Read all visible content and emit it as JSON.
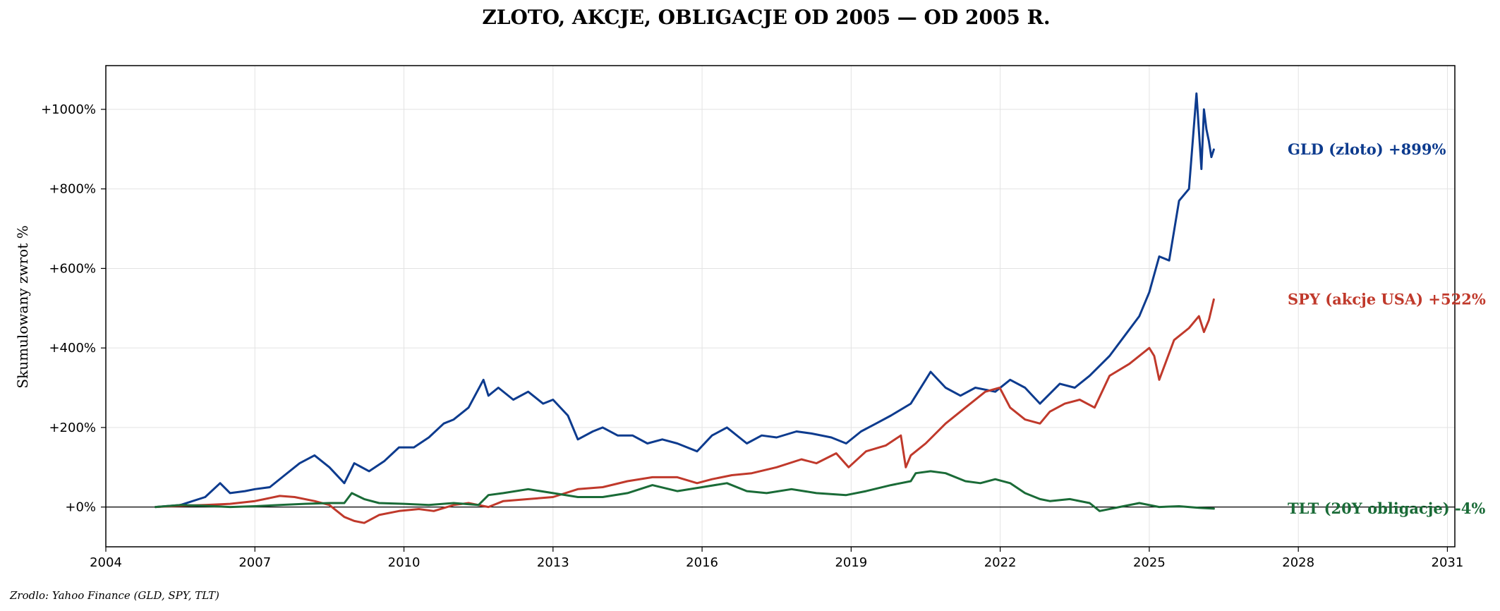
{
  "chart_data": {
    "type": "line",
    "title": "ZLOTO, AKCJE, OBLIGACJE OD 2005 — OD 2005 R.",
    "ylabel": "Skumulowany zwrot %",
    "xlabel": "",
    "xlim": [
      2004.0,
      2031.15
    ],
    "ylim": [
      -100,
      1110
    ],
    "x_ticks": [
      2004,
      2007,
      2010,
      2013,
      2016,
      2019,
      2022,
      2025,
      2028,
      2031
    ],
    "x_tick_labels": [
      "2004",
      "2007",
      "2010",
      "2013",
      "2016",
      "2019",
      "2022",
      "2025",
      "2028",
      "2031"
    ],
    "y_ticks": [
      0,
      200,
      400,
      600,
      800,
      1000
    ],
    "y_tick_labels": [
      "+0%",
      "+200%",
      "+400%",
      "+600%",
      "+800%",
      "+1000%"
    ],
    "grid": true,
    "zero_line": true,
    "source_note": "Zrodlo: Yahoo Finance (GLD, SPY, TLT)",
    "end_labels": [
      {
        "text": "GLD (zloto)  +899%",
        "color": "#0d3b8e",
        "y": 899
      },
      {
        "text": "SPY (akcje USA)  +522%",
        "color": "#c0392b",
        "y": 522
      },
      {
        "text": "TLT (20Y obligacje)  -4%",
        "color": "#1a6b37",
        "y": -4
      }
    ],
    "series": [
      {
        "name": "GLD (zloto)",
        "color": "#0d3b8e",
        "x": [
          2005.0,
          2005.5,
          2006.0,
          2006.3,
          2006.5,
          2006.8,
          2007.0,
          2007.3,
          2007.6,
          2007.9,
          2008.2,
          2008.5,
          2008.8,
          2009.0,
          2009.3,
          2009.6,
          2009.9,
          2010.2,
          2010.5,
          2010.8,
          2011.0,
          2011.3,
          2011.6,
          2011.7,
          2011.9,
          2012.2,
          2012.5,
          2012.8,
          2013.0,
          2013.3,
          2013.5,
          2013.8,
          2014.0,
          2014.3,
          2014.6,
          2014.9,
          2015.2,
          2015.5,
          2015.9,
          2016.2,
          2016.5,
          2016.9,
          2017.2,
          2017.5,
          2017.9,
          2018.2,
          2018.6,
          2018.9,
          2019.2,
          2019.5,
          2019.8,
          2020.2,
          2020.5,
          2020.6,
          2020.9,
          2021.2,
          2021.5,
          2021.9,
          2022.2,
          2022.5,
          2022.8,
          2023.2,
          2023.5,
          2023.8,
          2024.2,
          2024.5,
          2024.8,
          2025.0,
          2025.2,
          2025.4,
          2025.6,
          2025.8,
          2025.95,
          2026.05,
          2026.1,
          2026.15,
          2026.2,
          2026.25,
          2026.3
        ],
        "values": [
          0,
          5,
          25,
          60,
          35,
          40,
          45,
          50,
          80,
          110,
          130,
          100,
          60,
          110,
          90,
          115,
          150,
          150,
          175,
          210,
          220,
          250,
          320,
          280,
          300,
          270,
          290,
          260,
          270,
          230,
          170,
          190,
          200,
          180,
          180,
          160,
          170,
          160,
          140,
          180,
          200,
          160,
          180,
          175,
          190,
          185,
          175,
          160,
          190,
          210,
          230,
          260,
          320,
          340,
          300,
          280,
          300,
          290,
          320,
          300,
          260,
          310,
          300,
          330,
          380,
          430,
          480,
          540,
          630,
          620,
          770,
          800,
          1040,
          850,
          1000,
          950,
          920,
          880,
          899
        ]
      },
      {
        "name": "SPY (akcje USA)",
        "color": "#c0392b",
        "x": [
          2005.0,
          2005.5,
          2006.0,
          2006.5,
          2007.0,
          2007.5,
          2007.8,
          2008.2,
          2008.5,
          2008.8,
          2009.0,
          2009.2,
          2009.5,
          2009.9,
          2010.3,
          2010.6,
          2011.0,
          2011.3,
          2011.7,
          2012.0,
          2012.5,
          2013.0,
          2013.5,
          2014.0,
          2014.5,
          2015.0,
          2015.5,
          2015.9,
          2016.2,
          2016.6,
          2017.0,
          2017.5,
          2018.0,
          2018.3,
          2018.7,
          2018.95,
          2019.3,
          2019.7,
          2020.0,
          2020.1,
          2020.2,
          2020.5,
          2020.9,
          2021.3,
          2021.7,
          2021.99,
          2022.2,
          2022.5,
          2022.8,
          2023.0,
          2023.3,
          2023.6,
          2023.9,
          2024.2,
          2024.6,
          2025.0,
          2025.1,
          2025.2,
          2025.5,
          2025.8,
          2026.0,
          2026.1,
          2026.2,
          2026.3
        ],
        "values": [
          0,
          3,
          5,
          8,
          15,
          28,
          25,
          15,
          5,
          -25,
          -35,
          -40,
          -20,
          -10,
          -5,
          -10,
          5,
          10,
          0,
          15,
          20,
          25,
          45,
          50,
          65,
          75,
          75,
          60,
          70,
          80,
          85,
          100,
          120,
          110,
          135,
          100,
          140,
          155,
          180,
          100,
          130,
          160,
          210,
          250,
          290,
          300,
          250,
          220,
          210,
          240,
          260,
          270,
          250,
          330,
          360,
          400,
          380,
          320,
          420,
          450,
          480,
          440,
          470,
          522
        ]
      },
      {
        "name": "TLT (20Y obligacje)",
        "color": "#1a6b37",
        "x": [
          2005.0,
          2005.5,
          2006.0,
          2006.5,
          2007.0,
          2007.5,
          2008.0,
          2008.5,
          2008.8,
          2008.95,
          2009.2,
          2009.5,
          2010.0,
          2010.5,
          2011.0,
          2011.5,
          2011.7,
          2012.0,
          2012.5,
          2013.0,
          2013.5,
          2014.0,
          2014.5,
          2015.0,
          2015.5,
          2016.0,
          2016.5,
          2016.9,
          2017.3,
          2017.8,
          2018.3,
          2018.9,
          2019.3,
          2019.8,
          2020.2,
          2020.3,
          2020.6,
          2020.9,
          2021.3,
          2021.6,
          2021.9,
          2022.2,
          2022.5,
          2022.8,
          2023.0,
          2023.4,
          2023.8,
          2024.0,
          2024.4,
          2024.8,
          2025.2,
          2025.6,
          2026.0,
          2026.3
        ],
        "values": [
          0,
          5,
          3,
          0,
          2,
          5,
          8,
          10,
          10,
          35,
          20,
          10,
          8,
          5,
          10,
          5,
          30,
          35,
          45,
          35,
          25,
          25,
          35,
          55,
          40,
          50,
          60,
          40,
          35,
          45,
          35,
          30,
          40,
          55,
          65,
          85,
          90,
          85,
          65,
          60,
          70,
          60,
          35,
          20,
          15,
          20,
          10,
          -10,
          0,
          10,
          0,
          2,
          -2,
          -4
        ]
      }
    ]
  }
}
